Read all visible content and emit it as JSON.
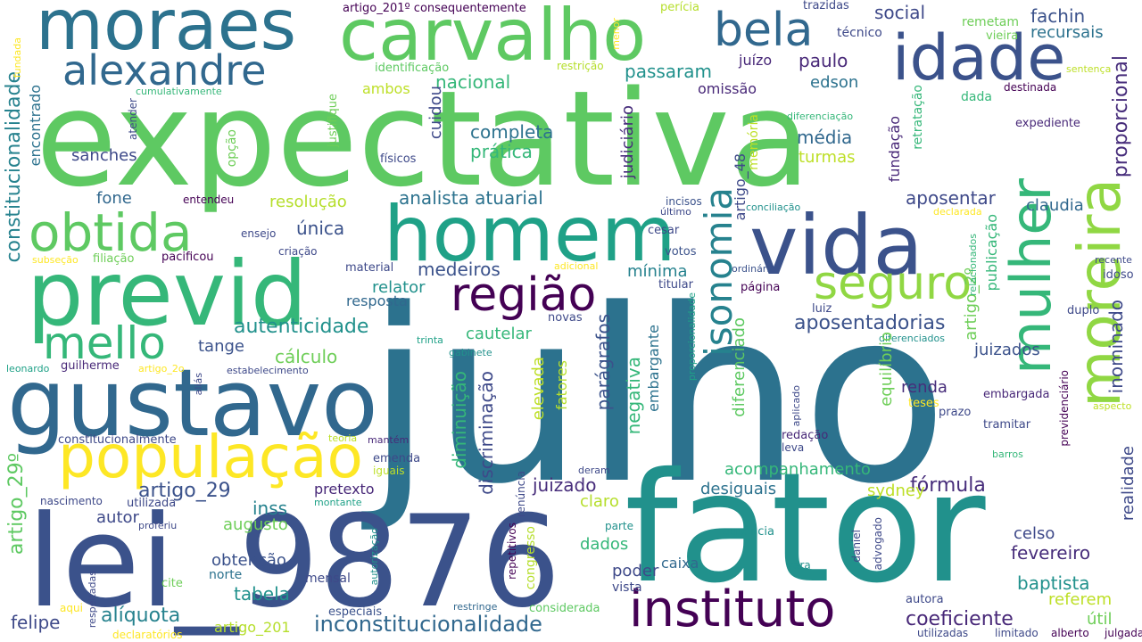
{
  "cloud": {
    "words": [
      {
        "text": "expectativa",
        "color": "#5ec962"
      },
      {
        "text": "julho",
        "color": "#2c728e"
      },
      {
        "text": "lei_9876",
        "color": "#3b528b"
      },
      {
        "text": "fator",
        "color": "#21918c"
      },
      {
        "text": "previd",
        "color": "#35b779"
      },
      {
        "text": "homem",
        "color": "#1fa187"
      },
      {
        "text": "vida",
        "color": "#3b528b"
      },
      {
        "text": "gustavo",
        "color": "#31688e"
      },
      {
        "text": "moraes",
        "color": "#2c728e"
      },
      {
        "text": "carvalho",
        "color": "#5ec962"
      },
      {
        "text": "idade",
        "color": "#3b528b"
      },
      {
        "text": "mulher",
        "color": "#35b779"
      },
      {
        "text": "moreira",
        "color": "#90d743"
      },
      {
        "text": "instituto",
        "color": "#440154"
      },
      {
        "text": "população",
        "color": "#fde725"
      },
      {
        "text": "obtida",
        "color": "#5ec962"
      },
      {
        "text": "região",
        "color": "#440154"
      },
      {
        "text": "seguro",
        "color": "#90d743"
      },
      {
        "text": "alexandre",
        "color": "#31688e"
      },
      {
        "text": "bela",
        "color": "#31688e"
      },
      {
        "text": "mello",
        "color": "#35b779"
      },
      {
        "text": "isonomia",
        "color": "#26828e"
      },
      {
        "text": "constitucionalidade",
        "color": "#26828e"
      },
      {
        "text": "inconstitucionalidade",
        "color": "#31688e"
      },
      {
        "text": "artigo_29",
        "color": "#3b528b"
      },
      {
        "text": "artigo_29º",
        "color": "#5ec962"
      },
      {
        "text": "proporcional",
        "color": "#472d7b"
      },
      {
        "text": "aposentadorias",
        "color": "#3b528b"
      },
      {
        "text": "autenticidade",
        "color": "#21918c"
      },
      {
        "text": "fórmula",
        "color": "#472d7b"
      },
      {
        "text": "coeficiente",
        "color": "#482878"
      },
      {
        "text": "alíquota",
        "color": "#26828e"
      },
      {
        "text": "fachin",
        "color": "#3b528b"
      },
      {
        "text": "social",
        "color": "#3e4989"
      },
      {
        "text": "recursais",
        "color": "#2c728e"
      },
      {
        "text": "passaram",
        "color": "#21918c"
      },
      {
        "text": "nacional",
        "color": "#35b779"
      },
      {
        "text": "completa",
        "color": "#2c728e"
      },
      {
        "text": "prática",
        "color": "#35b779"
      },
      {
        "text": "média",
        "color": "#31688e"
      },
      {
        "text": "turmas",
        "color": "#bddf26"
      },
      {
        "text": "paulo",
        "color": "#482878"
      },
      {
        "text": "juízo",
        "color": "#482878"
      },
      {
        "text": "edson",
        "color": "#2c728e"
      },
      {
        "text": "omissão",
        "color": "#482878"
      },
      {
        "text": "ambos",
        "color": "#bddf26"
      },
      {
        "text": "sanches",
        "color": "#3e4989"
      },
      {
        "text": "fone",
        "color": "#31688e"
      },
      {
        "text": "resolução",
        "color": "#b5de2b"
      },
      {
        "text": "única",
        "color": "#3b528b"
      },
      {
        "text": "medeiros",
        "color": "#3b528b"
      },
      {
        "text": "mínima",
        "color": "#26828e"
      },
      {
        "text": "analista atuarial",
        "color": "#2c728e"
      },
      {
        "text": "aposentar",
        "color": "#3e4989"
      },
      {
        "text": "claudia",
        "color": "#31688e"
      },
      {
        "text": "relator",
        "color": "#21918c"
      },
      {
        "text": "resposta",
        "color": "#31688e"
      },
      {
        "text": "tange",
        "color": "#3b528b"
      },
      {
        "text": "cálculo",
        "color": "#6ece58"
      },
      {
        "text": "cautelar",
        "color": "#35b779"
      },
      {
        "text": "juizados",
        "color": "#3b528b"
      },
      {
        "text": "renda",
        "color": "#472d7b"
      },
      {
        "text": "acompanhamento",
        "color": "#35b779"
      },
      {
        "text": "desiguais",
        "color": "#2c728e"
      },
      {
        "text": "sydney",
        "color": "#bddf26"
      },
      {
        "text": "juizado",
        "color": "#472d7b"
      },
      {
        "text": "pretexto",
        "color": "#482878"
      },
      {
        "text": "inss",
        "color": "#26828e"
      },
      {
        "text": "autor",
        "color": "#3e4989"
      },
      {
        "text": "augusto",
        "color": "#6ece58"
      },
      {
        "text": "claro",
        "color": "#b5de2b"
      },
      {
        "text": "dados",
        "color": "#35b779"
      },
      {
        "text": "poder",
        "color": "#3e4989"
      },
      {
        "text": "vista",
        "color": "#3e4989"
      },
      {
        "text": "obtenção",
        "color": "#3b528b"
      },
      {
        "text": "tabela",
        "color": "#21918c"
      },
      {
        "text": "mensal",
        "color": "#3e4989"
      },
      {
        "text": "norte",
        "color": "#2c728e"
      },
      {
        "text": "felipe",
        "color": "#3e4989"
      },
      {
        "text": "artigo_201",
        "color": "#b5de2b"
      },
      {
        "text": "especiais",
        "color": "#3b528b"
      },
      {
        "text": "considerada",
        "color": "#5ec962"
      },
      {
        "text": "restringe",
        "color": "#31688e"
      },
      {
        "text": "fevereiro",
        "color": "#472d7b"
      },
      {
        "text": "baptista",
        "color": "#21918c"
      },
      {
        "text": "referem",
        "color": "#bddf26"
      },
      {
        "text": "celso",
        "color": "#3e4989"
      },
      {
        "text": "útil",
        "color": "#6ece58"
      },
      {
        "text": "caixa",
        "color": "#31688e"
      },
      {
        "text": "artigo_201º consequentemente",
        "color": "#440154"
      },
      {
        "text": "perícia",
        "color": "#b5de2b"
      },
      {
        "text": "trazidas",
        "color": "#3e4989"
      },
      {
        "text": "técnico",
        "color": "#3e4989"
      },
      {
        "text": "remetam",
        "color": "#6ece58"
      },
      {
        "text": "vieira",
        "color": "#6ece58"
      },
      {
        "text": "identificação",
        "color": "#5ec962"
      },
      {
        "text": "restrição",
        "color": "#b5de2b"
      },
      {
        "text": "sentença",
        "color": "#bddf26"
      },
      {
        "text": "destinada",
        "color": "#440154"
      },
      {
        "text": "expediente",
        "color": "#482878"
      },
      {
        "text": "diferenciação",
        "color": "#35b779"
      },
      {
        "text": "cumulativamente",
        "color": "#35b779"
      },
      {
        "text": "entendeu",
        "color": "#440154"
      },
      {
        "text": "físicos",
        "color": "#3e4989"
      },
      {
        "text": "dada",
        "color": "#35b779"
      },
      {
        "text": "incisos",
        "color": "#3b528b"
      },
      {
        "text": "último",
        "color": "#3e4989"
      },
      {
        "text": "conciliação",
        "color": "#21918c"
      },
      {
        "text": "declarada",
        "color": "#fde725"
      },
      {
        "text": "cesar",
        "color": "#3e4989"
      },
      {
        "text": "votos",
        "color": "#3b528b"
      },
      {
        "text": "titular",
        "color": "#3e4989"
      },
      {
        "text": "ordinário",
        "color": "#3b528b"
      },
      {
        "text": "página",
        "color": "#440154"
      },
      {
        "text": "adicional",
        "color": "#fde725"
      },
      {
        "text": "material",
        "color": "#3e4989"
      },
      {
        "text": "novas",
        "color": "#3e4989"
      },
      {
        "text": "pacificou",
        "color": "#440154"
      },
      {
        "text": "filiação",
        "color": "#6ece58"
      },
      {
        "text": "subseção",
        "color": "#fde725"
      },
      {
        "text": "ensejo",
        "color": "#3e4989"
      },
      {
        "text": "criação",
        "color": "#3e4989"
      },
      {
        "text": "trinta",
        "color": "#1fa187"
      },
      {
        "text": "gabinete",
        "color": "#21918c"
      },
      {
        "text": "estabelecimento",
        "color": "#3e4989"
      },
      {
        "text": "leonardo",
        "color": "#1fa187"
      },
      {
        "text": "guilherme",
        "color": "#482878"
      },
      {
        "text": "artigo_2o",
        "color": "#fde725"
      },
      {
        "text": "luiz",
        "color": "#3e4989"
      },
      {
        "text": "duplo",
        "color": "#3e4989"
      },
      {
        "text": "diferenciados",
        "color": "#21918c"
      },
      {
        "text": "recente",
        "color": "#3e4989"
      },
      {
        "text": "idoso",
        "color": "#3e4989"
      },
      {
        "text": "embargada",
        "color": "#482878"
      },
      {
        "text": "prazo",
        "color": "#3e4989"
      },
      {
        "text": "teses",
        "color": "#fde725"
      },
      {
        "text": "tramitar",
        "color": "#3e4989"
      },
      {
        "text": "aspecto",
        "color": "#bddf26"
      },
      {
        "text": "barros",
        "color": "#35b779"
      },
      {
        "text": "redação",
        "color": "#482878"
      },
      {
        "text": "leva",
        "color": "#3e4989"
      },
      {
        "text": "constitucionalmente",
        "color": "#3e4989"
      },
      {
        "text": "teoria",
        "color": "#bddf26"
      },
      {
        "text": "mantém",
        "color": "#482878"
      },
      {
        "text": "emenda",
        "color": "#3e4989"
      },
      {
        "text": "iguais",
        "color": "#bddf26"
      },
      {
        "text": "deram",
        "color": "#3e4989"
      },
      {
        "text": "nascimento",
        "color": "#3e4989"
      },
      {
        "text": "utilizada",
        "color": "#3e4989"
      },
      {
        "text": "montante",
        "color": "#1fa187"
      },
      {
        "text": "proferiu",
        "color": "#3e4989"
      },
      {
        "text": "parte",
        "color": "#21918c"
      },
      {
        "text": "ausência",
        "color": "#21918c"
      },
      {
        "text": "cite",
        "color": "#6ece58"
      },
      {
        "text": "vara",
        "color": "#21918c"
      },
      {
        "text": "autora",
        "color": "#3e4989"
      },
      {
        "text": "aqui",
        "color": "#fde725"
      },
      {
        "text": "declaratórios",
        "color": "#fde725"
      },
      {
        "text": "utilizadas",
        "color": "#3e4989"
      },
      {
        "text": "limitado",
        "color": "#3e4989"
      },
      {
        "text": "alberto",
        "color": "#440154"
      },
      {
        "text": "julgada",
        "color": "#440154"
      },
      {
        "text": "diminuição",
        "color": "#35b779"
      },
      {
        "text": "discriminação",
        "color": "#3e4989"
      },
      {
        "text": "parágrafos",
        "color": "#3b528b"
      },
      {
        "text": "negativa",
        "color": "#35b779"
      },
      {
        "text": "elevada",
        "color": "#bddf26"
      },
      {
        "text": "fatores",
        "color": "#b5de2b"
      },
      {
        "text": "embargante",
        "color": "#2c728e"
      },
      {
        "text": "congresso",
        "color": "#b5de2b"
      },
      {
        "text": "judiciário",
        "color": "#472d7b"
      },
      {
        "text": "artigo_48",
        "color": "#3e4989"
      },
      {
        "text": "memória",
        "color": "#bddf26"
      },
      {
        "text": "fundação",
        "color": "#482878"
      },
      {
        "text": "retratação",
        "color": "#35b779"
      },
      {
        "text": "publicação",
        "color": "#35b779"
      },
      {
        "text": "diferenciado",
        "color": "#5ec962"
      },
      {
        "text": "equilíbrio",
        "color": "#6ece58"
      },
      {
        "text": "artigo_2º",
        "color": "#6ece58"
      },
      {
        "text": "inominado",
        "color": "#3e4989"
      },
      {
        "text": "realidade",
        "color": "#3e4989"
      },
      {
        "text": "encontrado",
        "color": "#2c728e"
      },
      {
        "text": "opção",
        "color": "#6ece58"
      },
      {
        "text": "justifique",
        "color": "#6ece58"
      },
      {
        "text": "atender",
        "color": "#3e4989"
      },
      {
        "text": "fundada",
        "color": "#fde725"
      },
      {
        "text": "menor",
        "color": "#fde725"
      },
      {
        "text": "cuidou",
        "color": "#3e4989"
      },
      {
        "text": "relacionados",
        "color": "#35b779"
      },
      {
        "text": "previdenciário",
        "color": "#440154"
      },
      {
        "text": "proporcionalidade",
        "color": "#1fa187"
      },
      {
        "text": "aplicado",
        "color": "#3e4989"
      },
      {
        "text": "aliás",
        "color": "#3e4989"
      },
      {
        "text": "respeitadas",
        "color": "#3e4989"
      },
      {
        "text": "autorização",
        "color": "#21918c"
      },
      {
        "text": "renúncia",
        "color": "#3e4989"
      },
      {
        "text": "repetitivos",
        "color": "#440154"
      },
      {
        "text": "daniel",
        "color": "#3e4989"
      },
      {
        "text": "advogado",
        "color": "#3e4989"
      }
    ]
  }
}
